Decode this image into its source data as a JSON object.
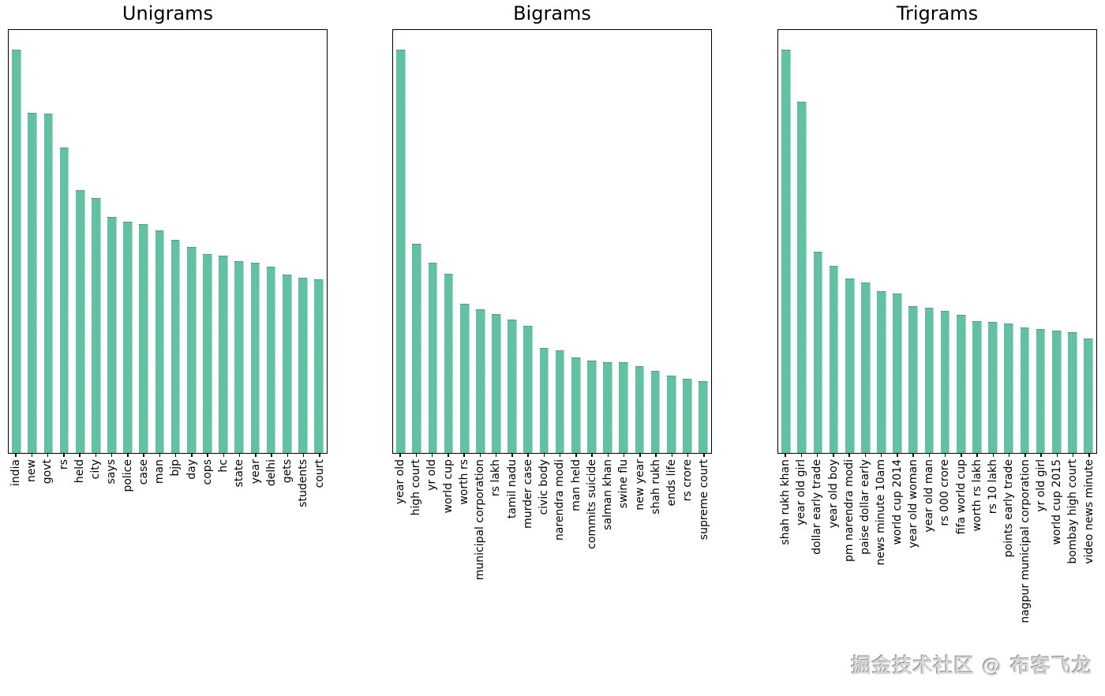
{
  "bar_color": "#62c1a2",
  "axis_color": "#000000",
  "background_color": "#ffffff",
  "watermark": {
    "text": "掘金技术社区 @ 布客飞龙",
    "color": "#d6d6d6"
  },
  "chart_data": [
    {
      "type": "bar",
      "title": "Unigrams",
      "categories": [
        "india",
        "new",
        "govt",
        "rs",
        "held",
        "city",
        "says",
        "police",
        "case",
        "man",
        "bjp",
        "day",
        "cops",
        "hc",
        "state",
        "year",
        "delhi",
        "gets",
        "students",
        "court"
      ],
      "values": [
        0.953,
        0.805,
        0.803,
        0.722,
        0.622,
        0.602,
        0.558,
        0.547,
        0.541,
        0.527,
        0.504,
        0.487,
        0.47,
        0.466,
        0.454,
        0.45,
        0.44,
        0.422,
        0.415,
        0.411
      ],
      "xlabel": "",
      "ylabel": "",
      "ylim": [
        0,
        1
      ],
      "grid": false,
      "legend": null,
      "tick_label_rotation": 90
    },
    {
      "type": "bar",
      "title": "Bigrams",
      "categories": [
        "year old",
        "high court",
        "yr old",
        "world cup",
        "worth rs",
        "municipal corporation",
        "rs lakh",
        "tamil nadu",
        "murder case",
        "civic body",
        "narendra modi",
        "man held",
        "commits suicide",
        "salman khan",
        "swine flu",
        "new year",
        "shah rukh",
        "ends life",
        "rs crore",
        "supreme court"
      ],
      "values": [
        0.954,
        0.494,
        0.449,
        0.423,
        0.353,
        0.34,
        0.329,
        0.316,
        0.3,
        0.248,
        0.243,
        0.226,
        0.218,
        0.215,
        0.214,
        0.206,
        0.194,
        0.182,
        0.176,
        0.17
      ],
      "xlabel": "",
      "ylabel": "",
      "ylim": [
        0,
        1
      ],
      "grid": false,
      "legend": null,
      "tick_label_rotation": 90
    },
    {
      "type": "bar",
      "title": "Trigrams",
      "categories": [
        "shah rukh khan",
        "year old girl",
        "dollar early trade",
        "year old boy",
        "pm narendra modi",
        "paise dollar early",
        "news minute 10am",
        "world cup 2014",
        "year old woman",
        "year old man",
        "rs 000 crore",
        "fifa world cup",
        "worth rs lakh",
        "rs 10 lakh",
        "points early trade",
        "nagpur municipal corporation",
        "yr old girl",
        "world cup 2015",
        "bombay high court",
        "video news minute"
      ],
      "values": [
        0.953,
        0.831,
        0.475,
        0.442,
        0.412,
        0.403,
        0.382,
        0.376,
        0.347,
        0.344,
        0.335,
        0.326,
        0.312,
        0.31,
        0.306,
        0.297,
        0.293,
        0.29,
        0.285,
        0.271
      ],
      "xlabel": "",
      "ylabel": "",
      "ylim": [
        0,
        1
      ],
      "grid": false,
      "legend": null,
      "tick_label_rotation": 90
    }
  ]
}
